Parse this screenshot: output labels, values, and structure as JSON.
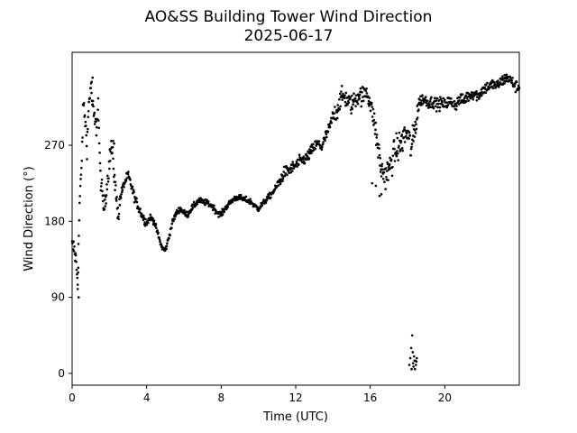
{
  "chart_data": {
    "type": "scatter",
    "title": "AO&SS Building Tower Wind Direction",
    "subtitle": "2025-06-17",
    "xlabel": "Time (UTC)",
    "ylabel": "Wind Direction (°)",
    "xlim": [
      0,
      24
    ],
    "ylim": [
      -14,
      380
    ],
    "xticks": [
      0,
      4,
      8,
      12,
      16,
      20
    ],
    "yticks": [
      0,
      90,
      180,
      270
    ],
    "grid": false,
    "marker_color": "#000000",
    "anchors": [
      [
        0.0,
        150
      ],
      [
        0.1,
        148
      ],
      [
        0.2,
        135
      ],
      [
        0.3,
        110
      ],
      [
        0.4,
        200
      ],
      [
        0.5,
        240
      ],
      [
        0.6,
        320
      ],
      [
        0.7,
        300
      ],
      [
        0.8,
        270
      ],
      [
        0.9,
        320
      ],
      [
        1.0,
        340
      ],
      [
        1.1,
        315
      ],
      [
        1.2,
        300
      ],
      [
        1.3,
        290
      ],
      [
        1.4,
        320
      ],
      [
        1.5,
        240
      ],
      [
        1.6,
        215
      ],
      [
        1.7,
        195
      ],
      [
        1.8,
        210
      ],
      [
        1.9,
        230
      ],
      [
        2.0,
        250
      ],
      [
        2.1,
        270
      ],
      [
        2.2,
        250
      ],
      [
        2.3,
        225
      ],
      [
        2.4,
        200
      ],
      [
        2.5,
        190
      ],
      [
        2.6,
        210
      ],
      [
        2.8,
        225
      ],
      [
        3.0,
        235
      ],
      [
        3.2,
        220
      ],
      [
        3.4,
        205
      ],
      [
        3.6,
        195
      ],
      [
        3.8,
        185
      ],
      [
        4.0,
        178
      ],
      [
        4.2,
        185
      ],
      [
        4.4,
        180
      ],
      [
        4.6,
        165
      ],
      [
        4.8,
        150
      ],
      [
        5.0,
        145
      ],
      [
        5.2,
        162
      ],
      [
        5.4,
        180
      ],
      [
        5.6,
        190
      ],
      [
        5.8,
        195
      ],
      [
        6.0,
        190
      ],
      [
        6.2,
        188
      ],
      [
        6.4,
        195
      ],
      [
        6.6,
        200
      ],
      [
        6.8,
        205
      ],
      [
        7.0,
        203
      ],
      [
        7.2,
        202
      ],
      [
        7.4,
        200
      ],
      [
        7.6,
        196
      ],
      [
        7.8,
        190
      ],
      [
        8.0,
        188
      ],
      [
        8.2,
        195
      ],
      [
        8.4,
        200
      ],
      [
        8.6,
        205
      ],
      [
        8.8,
        208
      ],
      [
        9.0,
        208
      ],
      [
        9.2,
        206
      ],
      [
        9.4,
        205
      ],
      [
        9.6,
        203
      ],
      [
        9.8,
        198
      ],
      [
        10.0,
        195
      ],
      [
        10.2,
        200
      ],
      [
        10.4,
        205
      ],
      [
        10.6,
        210
      ],
      [
        10.8,
        215
      ],
      [
        11.0,
        222
      ],
      [
        11.2,
        230
      ],
      [
        11.4,
        238
      ],
      [
        11.6,
        240
      ],
      [
        11.8,
        243
      ],
      [
        12.0,
        246
      ],
      [
        12.2,
        250
      ],
      [
        12.4,
        253
      ],
      [
        12.6,
        255
      ],
      [
        12.8,
        262
      ],
      [
        13.0,
        268
      ],
      [
        13.2,
        272
      ],
      [
        13.4,
        268
      ],
      [
        13.6,
        280
      ],
      [
        13.8,
        290
      ],
      [
        14.0,
        305
      ],
      [
        14.2,
        310
      ],
      [
        14.4,
        325
      ],
      [
        14.6,
        328
      ],
      [
        14.8,
        322
      ],
      [
        15.0,
        318
      ],
      [
        15.2,
        325
      ],
      [
        15.4,
        330
      ],
      [
        15.6,
        328
      ],
      [
        15.8,
        335
      ],
      [
        16.0,
        320
      ],
      [
        16.2,
        300
      ],
      [
        16.4,
        270
      ],
      [
        16.6,
        240
      ],
      [
        16.8,
        235
      ],
      [
        17.0,
        240
      ],
      [
        17.2,
        255
      ],
      [
        17.4,
        265
      ],
      [
        17.6,
        270
      ],
      [
        17.8,
        280
      ],
      [
        18.0,
        285
      ],
      [
        18.2,
        265
      ],
      [
        18.4,
        290
      ],
      [
        18.6,
        320
      ],
      [
        18.8,
        325
      ],
      [
        19.0,
        323
      ],
      [
        19.2,
        320
      ],
      [
        19.4,
        322
      ],
      [
        19.6,
        318
      ],
      [
        19.8,
        320
      ],
      [
        20.0,
        318
      ],
      [
        20.2,
        322
      ],
      [
        20.4,
        320
      ],
      [
        20.6,
        318
      ],
      [
        20.8,
        325
      ],
      [
        21.0,
        322
      ],
      [
        21.2,
        328
      ],
      [
        21.4,
        330
      ],
      [
        21.6,
        332
      ],
      [
        21.8,
        328
      ],
      [
        22.0,
        335
      ],
      [
        22.2,
        338
      ],
      [
        22.4,
        340
      ],
      [
        22.6,
        342
      ],
      [
        22.8,
        340
      ],
      [
        23.0,
        345
      ],
      [
        23.2,
        348
      ],
      [
        23.4,
        350
      ],
      [
        23.6,
        345
      ],
      [
        23.8,
        340
      ],
      [
        24.0,
        338
      ]
    ],
    "outlier_points": [
      [
        18.1,
        10
      ],
      [
        18.15,
        18
      ],
      [
        18.2,
        30
      ],
      [
        18.22,
        5
      ],
      [
        18.25,
        45
      ],
      [
        18.28,
        25
      ],
      [
        18.3,
        12
      ],
      [
        18.32,
        8
      ],
      [
        18.35,
        20
      ],
      [
        18.38,
        15
      ],
      [
        18.4,
        5
      ],
      [
        18.42,
        15
      ],
      [
        18.45,
        10
      ],
      [
        18.48,
        14
      ],
      [
        18.5,
        18
      ],
      [
        16.1,
        225
      ],
      [
        16.3,
        222
      ],
      [
        16.5,
        210
      ],
      [
        16.6,
        212
      ],
      [
        16.7,
        238
      ],
      [
        0.35,
        90
      ],
      [
        0.3,
        105
      ],
      [
        0.33,
        125
      ],
      [
        1.1,
        350
      ],
      [
        1.05,
        345
      ],
      [
        2.2,
        275
      ],
      [
        2.25,
        272
      ]
    ]
  }
}
